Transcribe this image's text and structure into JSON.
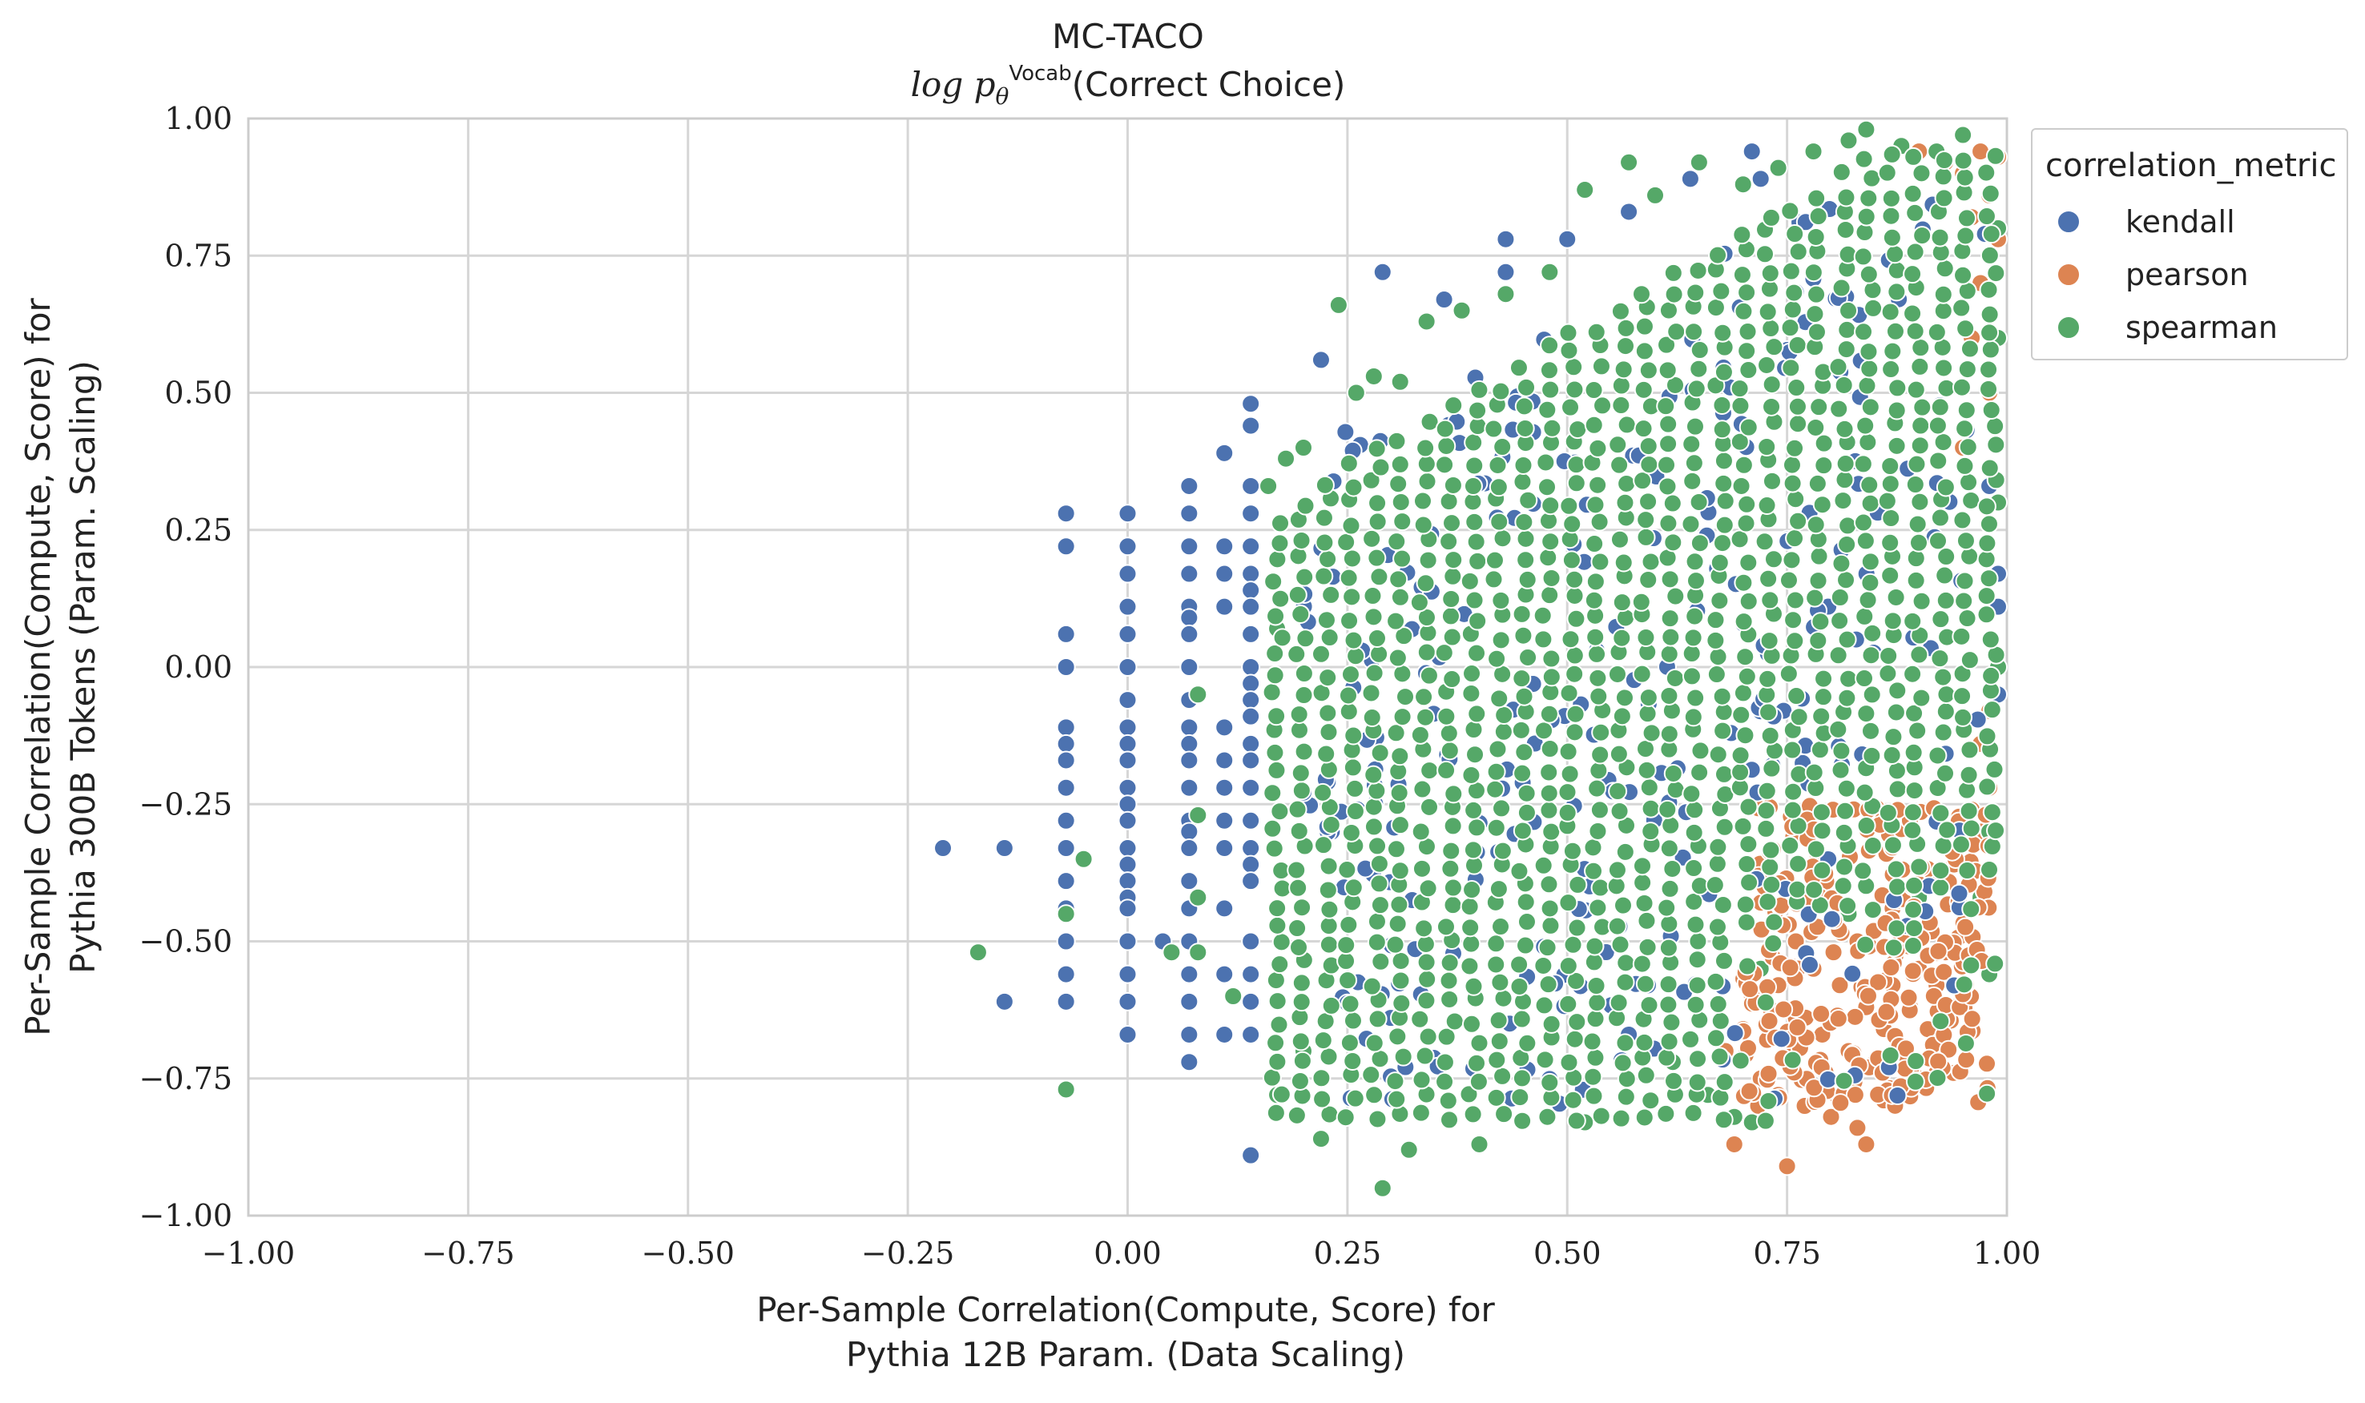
{
  "chart_data": {
    "type": "scatter",
    "title": "MC-TACO",
    "subtitle_prefix": "log p",
    "subtitle_sub": "θ",
    "subtitle_sup": "Vocab",
    "subtitle_suffix": "(Correct Choice)",
    "xlabel_line1": "Per-Sample Correlation(Compute, Score) for",
    "xlabel_line2": "Pythia 12B Param. (Data Scaling)",
    "ylabel_line1": "Per-Sample Correlation(Compute, Score) for",
    "ylabel_line2": "Pythia 300B Tokens (Param. Scaling)",
    "xlim": [
      -1.0,
      1.0
    ],
    "ylim": [
      -1.0,
      1.0
    ],
    "xticks": [
      "−1.00",
      "−0.75",
      "−0.50",
      "−0.25",
      "0.00",
      "0.25",
      "0.50",
      "0.75",
      "1.00"
    ],
    "yticks": [
      "−1.00",
      "−0.75",
      "−0.50",
      "−0.25",
      "0.00",
      "0.25",
      "0.50",
      "0.75",
      "1.00"
    ],
    "grid": true,
    "legend_title": "correlation_metric",
    "legend_placement": "outside-upper-right",
    "series": [
      {
        "name": "kendall",
        "color": "#4c72b0",
        "points": [
          [
            -0.21,
            -0.33
          ],
          [
            -0.14,
            -0.33
          ],
          [
            -0.14,
            -0.61
          ],
          [
            -0.07,
            0.28
          ],
          [
            -0.07,
            0.22
          ],
          [
            -0.07,
            0.06
          ],
          [
            -0.07,
            0.0
          ],
          [
            -0.07,
            -0.11
          ],
          [
            -0.07,
            -0.14
          ],
          [
            -0.07,
            -0.17
          ],
          [
            -0.07,
            -0.22
          ],
          [
            -0.07,
            -0.28
          ],
          [
            -0.07,
            -0.33
          ],
          [
            -0.07,
            -0.39
          ],
          [
            -0.07,
            -0.44
          ],
          [
            -0.07,
            -0.5
          ],
          [
            -0.07,
            -0.56
          ],
          [
            -0.07,
            -0.61
          ],
          [
            0.0,
            0.28
          ],
          [
            0.0,
            0.22
          ],
          [
            0.0,
            0.17
          ],
          [
            0.0,
            0.11
          ],
          [
            0.0,
            0.06
          ],
          [
            0.0,
            0.0
          ],
          [
            0.0,
            -0.06
          ],
          [
            0.0,
            -0.11
          ],
          [
            0.0,
            -0.14
          ],
          [
            0.0,
            -0.17
          ],
          [
            0.0,
            -0.22
          ],
          [
            0.0,
            -0.25
          ],
          [
            0.0,
            -0.28
          ],
          [
            0.0,
            -0.33
          ],
          [
            0.0,
            -0.36
          ],
          [
            0.0,
            -0.39
          ],
          [
            0.0,
            -0.42
          ],
          [
            0.0,
            -0.44
          ],
          [
            0.0,
            -0.5
          ],
          [
            0.0,
            -0.56
          ],
          [
            0.0,
            -0.61
          ],
          [
            0.0,
            -0.67
          ],
          [
            0.07,
            0.33
          ],
          [
            0.07,
            0.28
          ],
          [
            0.07,
            0.22
          ],
          [
            0.07,
            0.17
          ],
          [
            0.07,
            0.11
          ],
          [
            0.07,
            0.09
          ],
          [
            0.07,
            0.06
          ],
          [
            0.07,
            0.0
          ],
          [
            0.07,
            -0.06
          ],
          [
            0.07,
            -0.11
          ],
          [
            0.07,
            -0.14
          ],
          [
            0.07,
            -0.17
          ],
          [
            0.07,
            -0.22
          ],
          [
            0.07,
            -0.28
          ],
          [
            0.07,
            -0.3
          ],
          [
            0.07,
            -0.33
          ],
          [
            0.07,
            -0.39
          ],
          [
            0.07,
            -0.44
          ],
          [
            0.07,
            -0.5
          ],
          [
            0.07,
            -0.56
          ],
          [
            0.07,
            -0.61
          ],
          [
            0.07,
            -0.67
          ],
          [
            0.07,
            -0.72
          ],
          [
            0.04,
            -0.5
          ],
          [
            0.11,
            0.39
          ],
          [
            0.11,
            0.22
          ],
          [
            0.11,
            0.17
          ],
          [
            0.11,
            0.11
          ],
          [
            0.11,
            -0.11
          ],
          [
            0.11,
            -0.17
          ],
          [
            0.11,
            -0.22
          ],
          [
            0.11,
            -0.28
          ],
          [
            0.11,
            -0.33
          ],
          [
            0.11,
            -0.44
          ],
          [
            0.11,
            -0.56
          ],
          [
            0.11,
            -0.67
          ],
          [
            0.14,
            0.48
          ],
          [
            0.14,
            0.44
          ],
          [
            0.14,
            0.33
          ],
          [
            0.14,
            0.28
          ],
          [
            0.14,
            0.22
          ],
          [
            0.14,
            0.17
          ],
          [
            0.14,
            0.14
          ],
          [
            0.14,
            0.11
          ],
          [
            0.14,
            0.06
          ],
          [
            0.14,
            0.0
          ],
          [
            0.14,
            -0.03
          ],
          [
            0.14,
            -0.06
          ],
          [
            0.14,
            -0.09
          ],
          [
            0.14,
            -0.14
          ],
          [
            0.14,
            -0.17
          ],
          [
            0.14,
            -0.22
          ],
          [
            0.14,
            -0.28
          ],
          [
            0.14,
            -0.33
          ],
          [
            0.14,
            -0.36
          ],
          [
            0.14,
            -0.39
          ],
          [
            0.14,
            -0.5
          ],
          [
            0.14,
            -0.56
          ],
          [
            0.14,
            -0.61
          ],
          [
            0.14,
            -0.67
          ],
          [
            0.14,
            -0.89
          ],
          [
            0.22,
            0.56
          ],
          [
            0.29,
            0.72
          ],
          [
            0.36,
            0.67
          ],
          [
            0.43,
            0.78
          ],
          [
            0.43,
            0.72
          ],
          [
            0.5,
            0.78
          ],
          [
            0.57,
            0.83
          ],
          [
            0.64,
            0.89
          ],
          [
            0.71,
            0.94
          ],
          [
            0.72,
            0.89
          ],
          [
            0.57,
            -0.67
          ],
          [
            0.98,
            0.33
          ],
          [
            0.99,
            0.17
          ],
          [
            0.99,
            0.11
          ],
          [
            0.99,
            -0.05
          ]
        ]
      },
      {
        "name": "pearson",
        "color": "#dd8452",
        "points": [
          [
            0.69,
            -0.87
          ],
          [
            0.75,
            -0.91
          ],
          [
            0.84,
            -0.87
          ],
          [
            0.72,
            -0.75
          ],
          [
            0.74,
            -0.78
          ],
          [
            0.77,
            -0.8
          ],
          [
            0.8,
            -0.82
          ],
          [
            0.83,
            -0.84
          ],
          [
            0.86,
            -0.79
          ],
          [
            0.9,
            -0.75
          ],
          [
            0.92,
            -0.74
          ],
          [
            0.76,
            -0.64
          ],
          [
            0.79,
            -0.67
          ],
          [
            0.82,
            -0.7
          ],
          [
            0.85,
            -0.72
          ],
          [
            0.88,
            -0.69
          ],
          [
            0.91,
            -0.66
          ],
          [
            0.94,
            -0.62
          ],
          [
            0.96,
            -0.6
          ],
          [
            0.71,
            -0.6
          ],
          [
            0.74,
            -0.58
          ],
          [
            0.78,
            -0.55
          ],
          [
            0.81,
            -0.58
          ],
          [
            0.84,
            -0.62
          ],
          [
            0.87,
            -0.58
          ],
          [
            0.9,
            -0.55
          ],
          [
            0.93,
            -0.52
          ],
          [
            0.95,
            -0.48
          ],
          [
            0.76,
            -0.5
          ],
          [
            0.8,
            -0.46
          ],
          [
            0.83,
            -0.5
          ],
          [
            0.87,
            -0.44
          ],
          [
            0.91,
            -0.4
          ],
          [
            0.94,
            -0.36
          ],
          [
            0.97,
            -0.3
          ],
          [
            0.98,
            -0.22
          ],
          [
            0.97,
            -0.14
          ],
          [
            0.98,
            -0.08
          ],
          [
            0.96,
            -0.26
          ],
          [
            0.73,
            -0.62
          ],
          [
            0.7,
            -0.66
          ],
          [
            0.68,
            -0.7
          ],
          [
            0.86,
            -0.66
          ],
          [
            0.89,
            -0.62
          ],
          [
            0.92,
            -0.58
          ],
          [
            0.95,
            0.9
          ],
          [
            0.97,
            0.94
          ],
          [
            0.99,
            0.93
          ],
          [
            0.93,
            0.92
          ],
          [
            0.9,
            0.94
          ],
          [
            0.98,
            0.86
          ],
          [
            0.96,
            0.82
          ],
          [
            0.99,
            0.78
          ],
          [
            0.97,
            0.7
          ],
          [
            0.96,
            0.6
          ],
          [
            0.98,
            0.5
          ],
          [
            0.95,
            0.4
          ]
        ]
      },
      {
        "name": "spearman",
        "color": "#55a868",
        "points": [
          [
            -0.17,
            -0.52
          ],
          [
            -0.07,
            -0.45
          ],
          [
            -0.07,
            -0.77
          ],
          [
            -0.05,
            -0.35
          ],
          [
            0.05,
            -0.52
          ],
          [
            0.08,
            -0.05
          ],
          [
            0.08,
            -0.27
          ],
          [
            0.08,
            -0.42
          ],
          [
            0.08,
            -0.52
          ],
          [
            0.12,
            -0.6
          ],
          [
            0.17,
            0.07
          ],
          [
            0.17,
            -0.78
          ],
          [
            0.2,
            0.4
          ],
          [
            0.22,
            -0.86
          ],
          [
            0.24,
            0.66
          ],
          [
            0.26,
            0.5
          ],
          [
            0.28,
            0.53
          ],
          [
            0.29,
            -0.95
          ],
          [
            0.31,
            0.52
          ],
          [
            0.32,
            -0.88
          ],
          [
            0.34,
            0.63
          ],
          [
            0.38,
            0.65
          ],
          [
            0.4,
            -0.87
          ],
          [
            0.43,
            0.68
          ],
          [
            0.48,
            0.72
          ],
          [
            0.52,
            0.87
          ],
          [
            0.57,
            0.92
          ],
          [
            0.6,
            0.86
          ],
          [
            0.65,
            0.92
          ],
          [
            0.7,
            0.88
          ],
          [
            0.74,
            0.91
          ],
          [
            0.78,
            0.94
          ],
          [
            0.82,
            0.96
          ],
          [
            0.84,
            0.98
          ],
          [
            0.88,
            0.95
          ],
          [
            0.92,
            0.94
          ],
          [
            0.95,
            0.97
          ],
          [
            0.52,
            -0.83
          ],
          [
            0.66,
            -0.78
          ],
          [
            0.69,
            -0.82
          ],
          [
            0.71,
            -0.83
          ],
          [
            0.98,
            -0.56
          ],
          [
            0.97,
            -0.42
          ],
          [
            0.98,
            -0.3
          ],
          [
            0.99,
            0.0
          ],
          [
            0.99,
            0.3
          ],
          [
            0.99,
            0.6
          ],
          [
            0.99,
            0.8
          ],
          [
            0.62,
            -0.72
          ],
          [
            0.72,
            -0.55
          ],
          [
            0.82,
            -0.45
          ],
          [
            0.9,
            -0.42
          ],
          [
            0.16,
            0.33
          ],
          [
            0.18,
            0.38
          ],
          [
            0.2,
            -0.7
          ]
        ]
      }
    ]
  }
}
